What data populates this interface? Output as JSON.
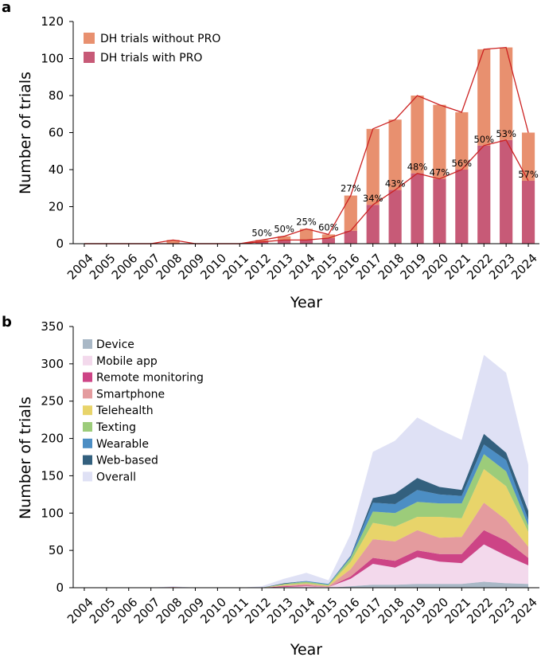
{
  "chart_data": [
    {
      "panel": "a",
      "type": "bar",
      "stacked": true,
      "xlabel": "Year",
      "ylabel": "Number of trials",
      "ylim": [
        0,
        120
      ],
      "yticks": [
        0,
        20,
        40,
        60,
        80,
        100,
        120
      ],
      "categories": [
        "2004",
        "2005",
        "2006",
        "2007",
        "2008",
        "2009",
        "2010",
        "2011",
        "2012",
        "2013",
        "2014",
        "2015",
        "2016",
        "2017",
        "2018",
        "2019",
        "2020",
        "2021",
        "2022",
        "2023",
        "2024"
      ],
      "series": [
        {
          "name": "DH trials with PRO",
          "color": "#c75a77",
          "values": [
            0,
            0,
            0,
            0,
            0,
            0,
            0,
            0,
            1,
            2,
            2,
            3,
            7,
            21,
            29,
            38,
            35,
            40,
            53,
            56,
            34
          ]
        },
        {
          "name": "DH trials without PRO",
          "color": "#e8906f",
          "values": [
            0,
            0,
            0,
            0,
            2,
            0,
            0,
            0,
            1,
            2,
            6,
            2,
            19,
            41,
            38,
            42,
            40,
            31,
            52,
            50,
            26
          ]
        }
      ],
      "legend": [
        "DH trials without PRO",
        "DH trials with PRO"
      ],
      "legend_position": "top-left",
      "outline_color": "#cc2222",
      "percent_labels": [
        "",
        "",
        "",
        "",
        "",
        "",
        "",
        "",
        "50%",
        "50%",
        "25%",
        "60%",
        "27%",
        "34%",
        "43%",
        "48%",
        "47%",
        "56%",
        "50%",
        "53%",
        "57%"
      ]
    },
    {
      "panel": "b",
      "type": "area",
      "xlabel": "Year",
      "ylabel": "Number of trials",
      "ylim": [
        0,
        350
      ],
      "yticks": [
        0,
        50,
        100,
        150,
        200,
        250,
        300,
        350
      ],
      "x": [
        "2004",
        "2005",
        "2006",
        "2007",
        "2008",
        "2009",
        "2010",
        "2011",
        "2012",
        "2013",
        "2014",
        "2015",
        "2016",
        "2017",
        "2018",
        "2019",
        "2020",
        "2021",
        "2022",
        "2023",
        "2024"
      ],
      "stacked_series": [
        {
          "name": "Device",
          "color": "#a9b8c6",
          "values": [
            0,
            0,
            0,
            0,
            0,
            0,
            0,
            0,
            0,
            0,
            0,
            0,
            2,
            4,
            4,
            5,
            5,
            5,
            8,
            6,
            5
          ]
        },
        {
          "name": "Mobile app",
          "color": "#f3d9ec",
          "values": [
            0,
            0,
            0,
            0,
            0,
            0,
            0,
            0,
            0,
            1,
            2,
            1,
            10,
            28,
            23,
            36,
            30,
            28,
            50,
            37,
            25
          ]
        },
        {
          "name": "Remote monitoring",
          "color": "#cd4486",
          "values": [
            0,
            0,
            0,
            0,
            0,
            0,
            0,
            0,
            0,
            1,
            1,
            0,
            3,
            8,
            9,
            9,
            10,
            12,
            19,
            20,
            10
          ]
        },
        {
          "name": "Smartphone",
          "color": "#e49b9e",
          "values": [
            0,
            0,
            0,
            0,
            1,
            0,
            0,
            0,
            0,
            1,
            2,
            1,
            10,
            25,
            26,
            27,
            22,
            23,
            37,
            28,
            15
          ]
        },
        {
          "name": "Telehealth",
          "color": "#e8d46a",
          "values": [
            0,
            0,
            0,
            0,
            0,
            0,
            0,
            0,
            0,
            1,
            1,
            1,
            10,
            22,
            20,
            18,
            28,
            25,
            45,
            45,
            20
          ]
        },
        {
          "name": "Texting",
          "color": "#9ccc7a",
          "values": [
            0,
            0,
            0,
            0,
            0,
            0,
            0,
            0,
            0,
            1,
            2,
            1,
            5,
            15,
            18,
            20,
            18,
            20,
            20,
            20,
            8
          ]
        },
        {
          "name": "Wearable",
          "color": "#4c8ec4",
          "values": [
            0,
            0,
            0,
            0,
            0,
            0,
            0,
            0,
            0,
            0,
            1,
            1,
            2,
            12,
            12,
            16,
            12,
            10,
            13,
            15,
            8
          ]
        },
        {
          "name": "Web-based",
          "color": "#33607e",
          "values": [
            0,
            0,
            0,
            0,
            0,
            0,
            0,
            0,
            0,
            1,
            0,
            0,
            1,
            6,
            14,
            16,
            10,
            8,
            14,
            10,
            12
          ]
        }
      ],
      "overall": {
        "name": "Overall",
        "color": "#dfe1f5",
        "values": [
          0,
          0,
          0,
          0,
          2,
          0,
          0,
          0,
          2,
          12,
          20,
          10,
          72,
          182,
          197,
          228,
          212,
          198,
          312,
          288,
          165
        ]
      },
      "legend": [
        "Device",
        "Mobile app",
        "Remote monitoring",
        "Smartphone",
        "Telehealth",
        "Texting",
        "Wearable",
        "Web-based",
        "Overall"
      ],
      "legend_position": "top-left"
    }
  ]
}
